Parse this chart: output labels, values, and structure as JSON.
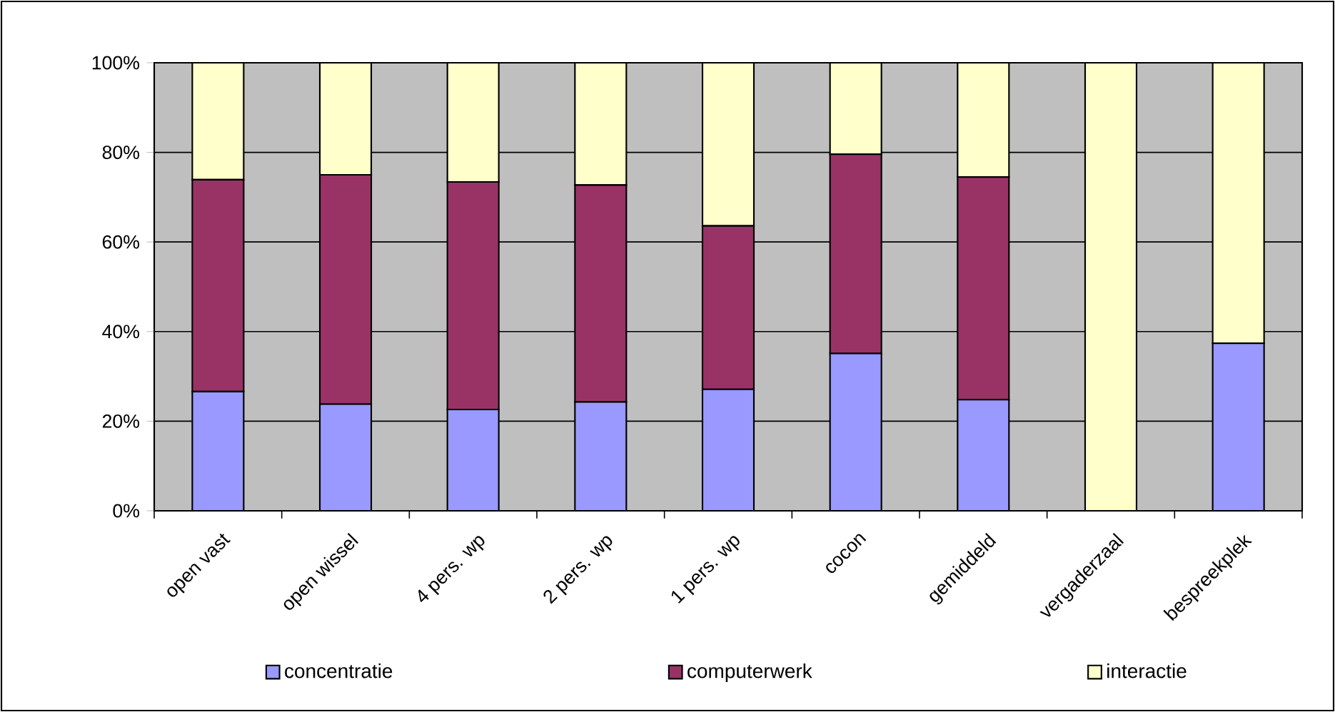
{
  "chart_data": {
    "type": "bar",
    "stacked": true,
    "categories": [
      "open vast",
      "open wissel",
      "4 pers. wp",
      "2 pers. wp",
      "1 pers. wp",
      "cocon",
      "gemiddeld",
      "vergaderzaal",
      "bespreekplek"
    ],
    "series": [
      {
        "name": "concentratie",
        "color": "#9999ff",
        "values": [
          26.6,
          23.8,
          22.6,
          24.3,
          27.1,
          35.1,
          24.8,
          0,
          37.4
        ]
      },
      {
        "name": "computerwerk",
        "color": "#993366",
        "values": [
          47.3,
          51.2,
          50.8,
          48.4,
          36.5,
          44.5,
          49.7,
          0,
          0
        ]
      },
      {
        "name": "interactie",
        "color": "#ffffcc",
        "values": [
          26.1,
          25.0,
          26.6,
          27.3,
          36.4,
          20.4,
          25.5,
          100,
          62.6
        ]
      }
    ],
    "ylim": [
      0,
      100
    ],
    "yticks": [
      {
        "value": 0,
        "label": "0%"
      },
      {
        "value": 20,
        "label": "20%"
      },
      {
        "value": 40,
        "label": "40%"
      },
      {
        "value": 60,
        "label": "60%"
      },
      {
        "value": 80,
        "label": "80%"
      },
      {
        "value": 100,
        "label": "100%"
      }
    ],
    "grid": "y",
    "legend": "bottom"
  }
}
